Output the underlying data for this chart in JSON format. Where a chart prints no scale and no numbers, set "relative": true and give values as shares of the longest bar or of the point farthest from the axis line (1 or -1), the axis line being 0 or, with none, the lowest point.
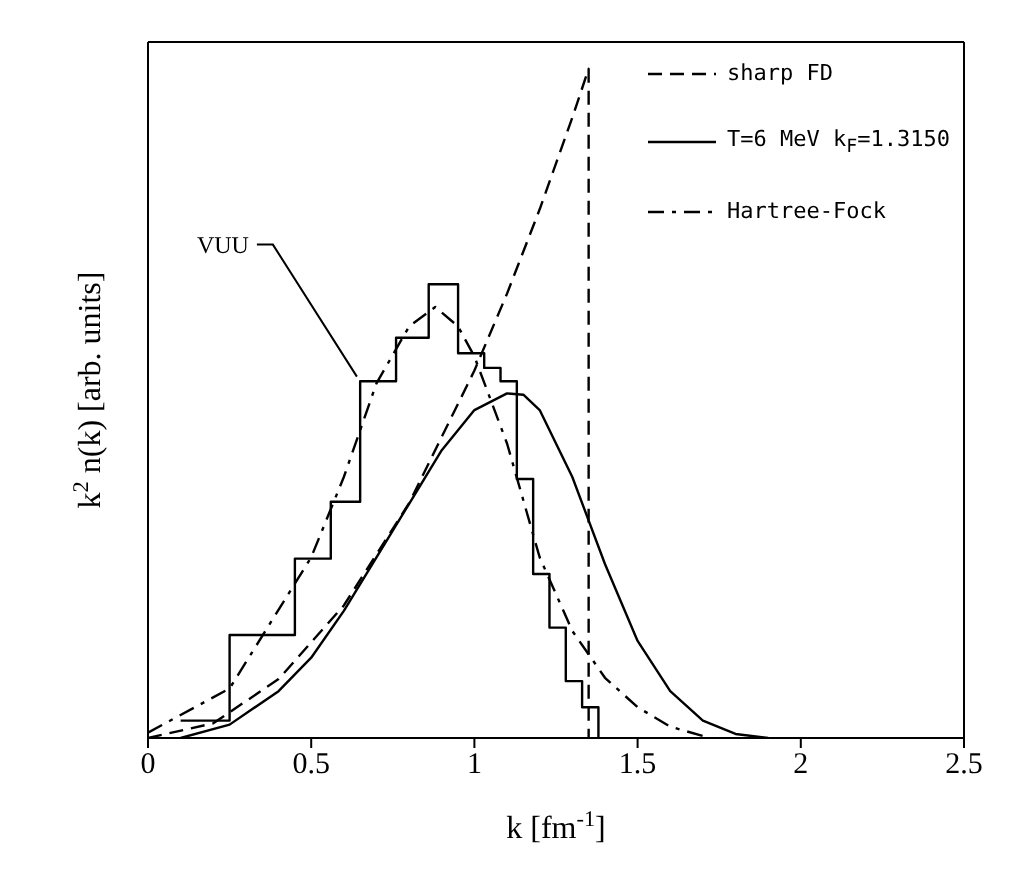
{
  "chart_data": {
    "type": "line",
    "xlabel": "k [fm$^{-1}$]",
    "ylabel": "k$^{2}$ n(k) [arb. units]",
    "relative": true,
    "xlim": [
      0,
      2.5
    ],
    "xticks": [
      0,
      0.5,
      1,
      1.5,
      2,
      2.5
    ],
    "tick_labels": "x",
    "legend": "top right",
    "grid": false,
    "marker": "none",
    "series": [
      {
        "name": "sharp FD",
        "color": "#000000",
        "line_style": "dashed",
        "x": [
          0,
          0.2,
          0.4,
          0.6,
          0.8,
          1.0,
          1.1,
          1.2,
          1.3,
          1.35,
          1.35
        ],
        "values": [
          0,
          0.022,
          0.088,
          0.198,
          0.351,
          0.549,
          0.664,
          0.79,
          0.927,
          1.0,
          0
        ]
      },
      {
        "name": "T=6 MeV k$_{F}$=1.3150",
        "color": "#000000",
        "line_style": "solid",
        "x": [
          0.1,
          0.25,
          0.4,
          0.5,
          0.6,
          0.7,
          0.8,
          0.9,
          1.0,
          1.1,
          1.15,
          1.2,
          1.3,
          1.4,
          1.5,
          1.6,
          1.7,
          1.8,
          1.9
        ],
        "values": [
          0,
          0.02,
          0.07,
          0.12,
          0.19,
          0.27,
          0.35,
          0.43,
          0.49,
          0.515,
          0.513,
          0.49,
          0.39,
          0.26,
          0.145,
          0.07,
          0.026,
          0.006,
          0
        ]
      },
      {
        "name": "Hartree-Fock",
        "color": "#000000",
        "line_style": "dashdot",
        "x": [
          0,
          0.25,
          0.5,
          0.6,
          0.7,
          0.8,
          0.88,
          0.95,
          1.0,
          1.1,
          1.2,
          1.3,
          1.4,
          1.5,
          1.6,
          1.7
        ],
        "values": [
          0.008,
          0.074,
          0.27,
          0.39,
          0.53,
          0.615,
          0.644,
          0.615,
          0.57,
          0.44,
          0.27,
          0.16,
          0.09,
          0.046,
          0.017,
          0.003
        ]
      },
      {
        "type": "step",
        "color": "#000000",
        "line_style": "solid",
        "x": [
          0.1,
          0.25,
          0.45,
          0.56,
          0.65,
          0.76,
          0.86,
          0.95,
          1.03,
          1.08,
          1.13,
          1.18,
          1.23,
          1.28,
          1.33,
          1.38
        ],
        "values": [
          0.026,
          0.154,
          0.268,
          0.353,
          0.533,
          0.598,
          0.678,
          0.575,
          0.553,
          0.533,
          0.387,
          0.245,
          0.165,
          0.085,
          0.046,
          0
        ]
      }
    ],
    "annotations": [
      {
        "text": "VUU",
        "x": 0.64,
        "y": 0.54
      }
    ]
  }
}
